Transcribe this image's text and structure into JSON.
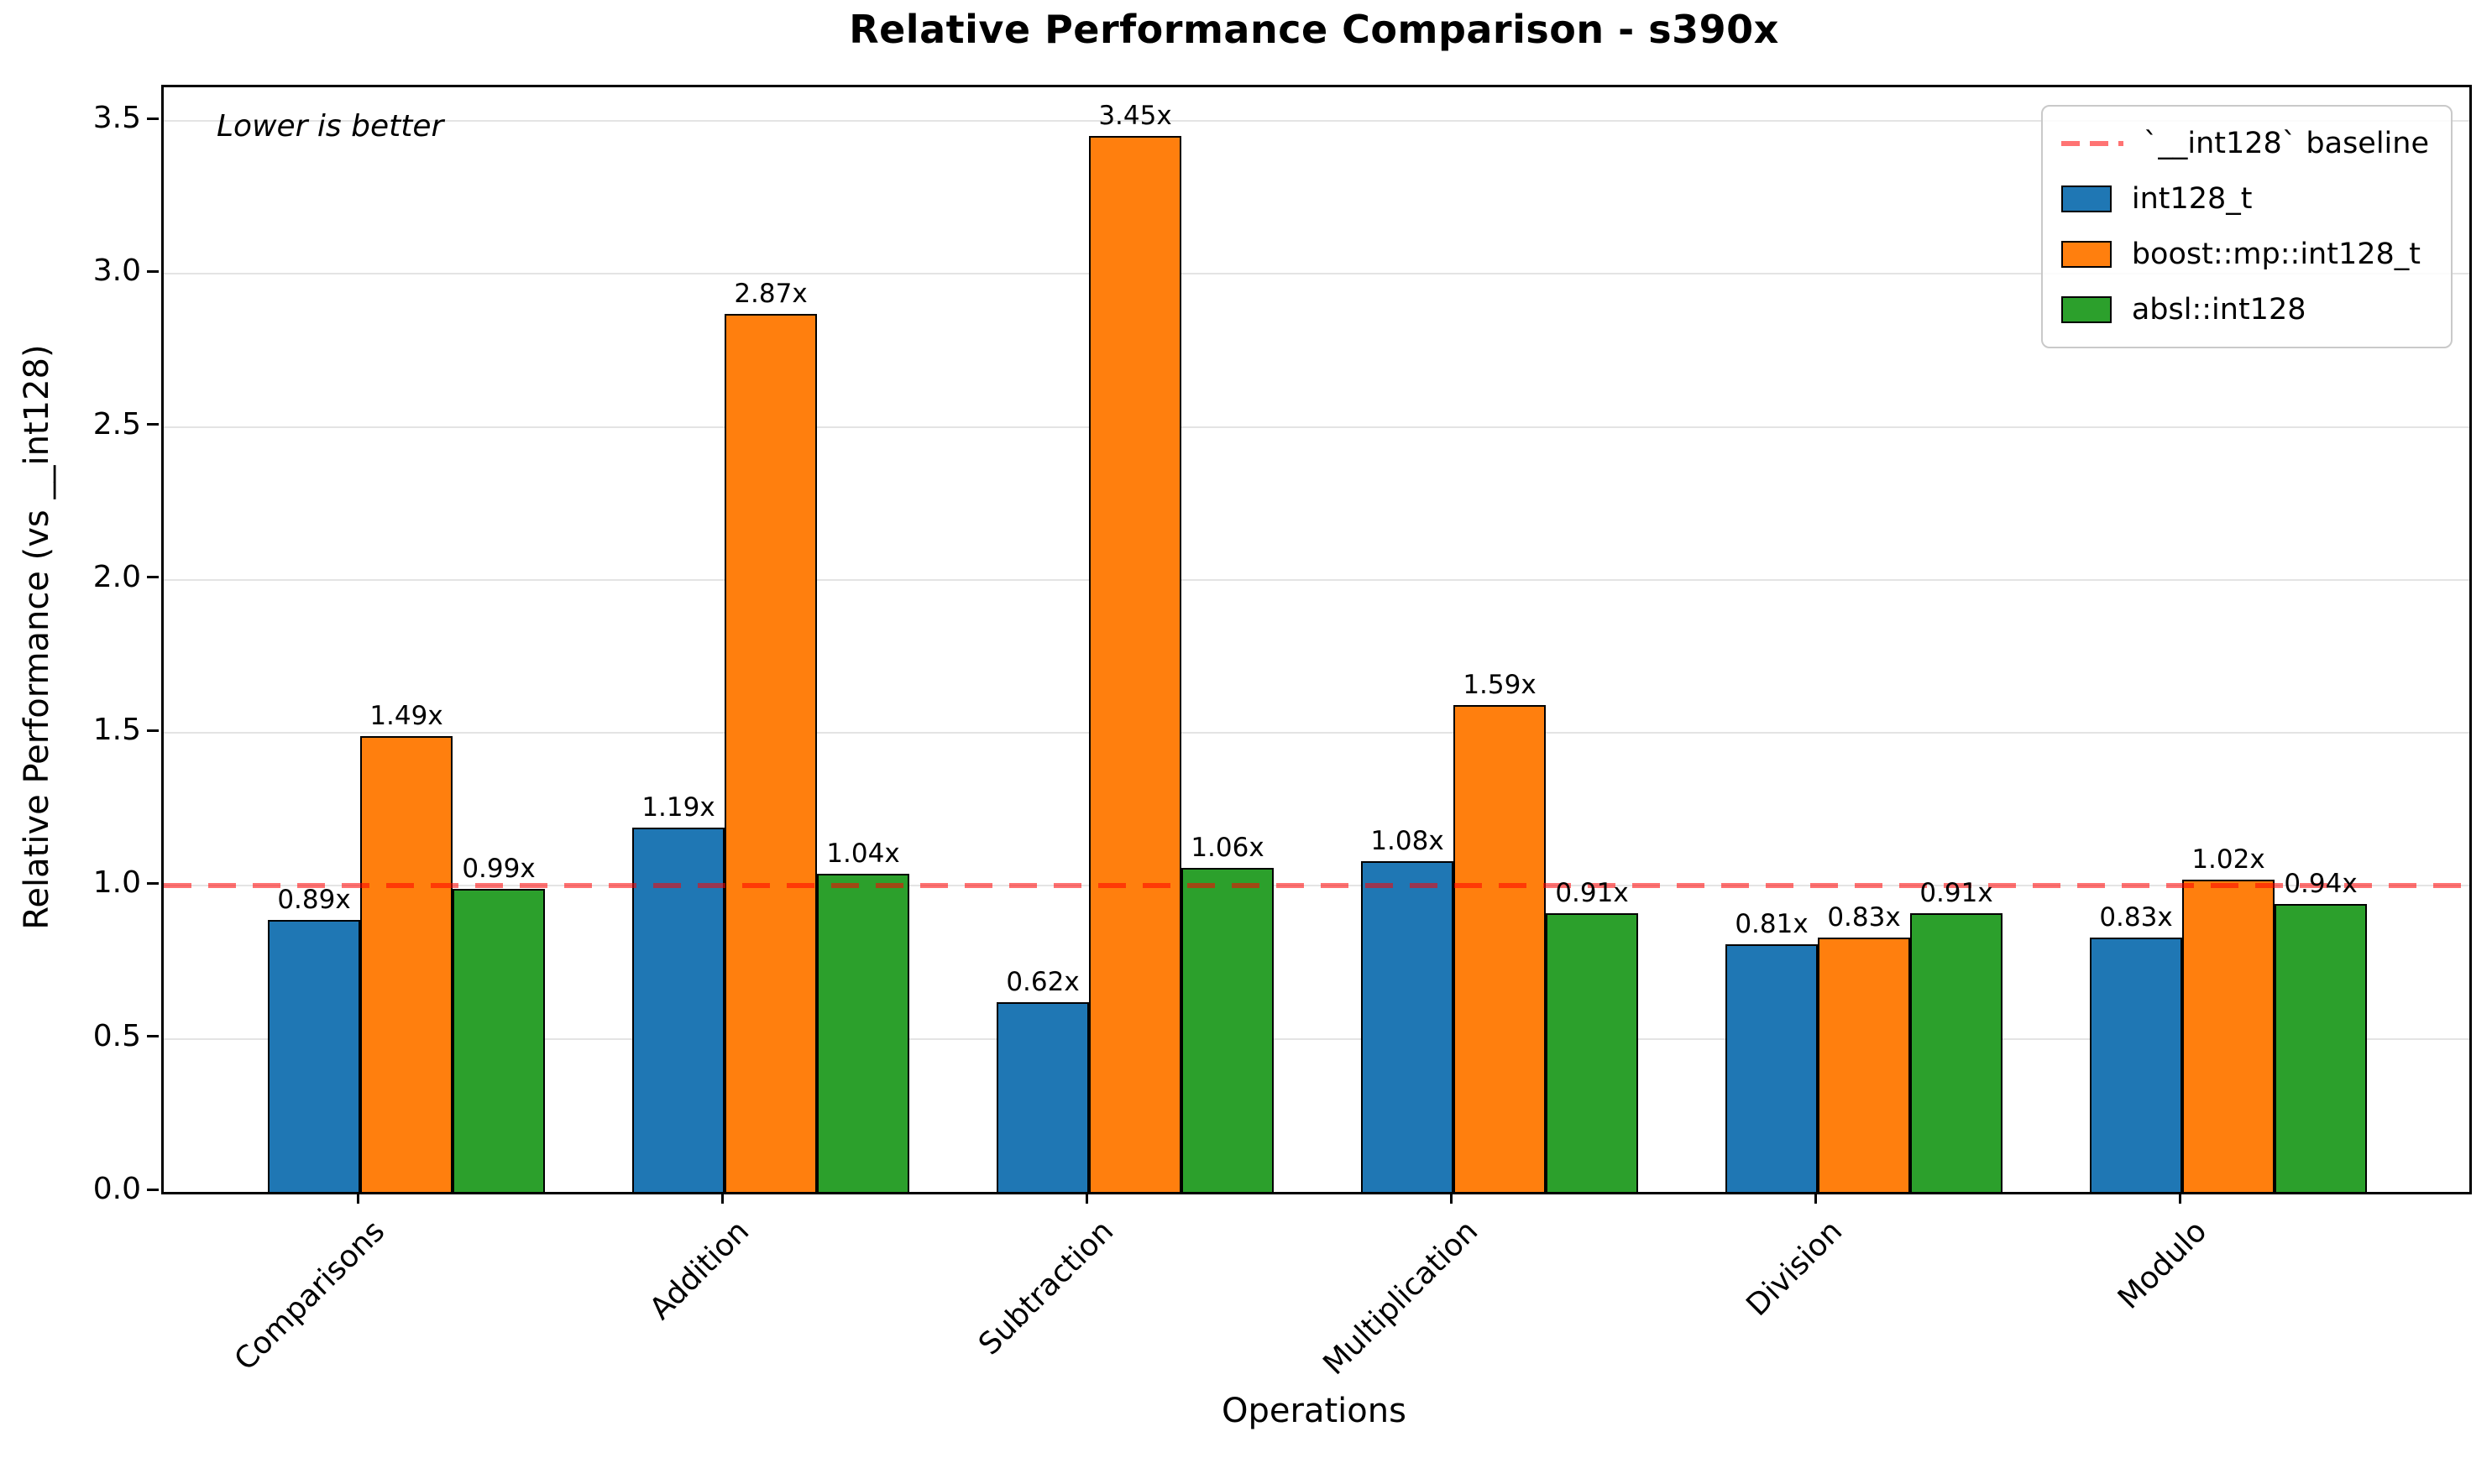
{
  "title": "Relative Performance Comparison - s390x",
  "annotation": "Lower is better",
  "chart_data": {
    "type": "bar",
    "title": "Relative Performance Comparison - s390x",
    "xlabel": "Operations",
    "ylabel": "Relative Performance (vs __int128)",
    "categories": [
      "Comparisons",
      "Addition",
      "Subtraction",
      "Multiplication",
      "Division",
      "Modulo"
    ],
    "series": [
      {
        "name": "int128_t",
        "color": "#1f77b4",
        "values": [
          0.89,
          1.19,
          0.62,
          1.08,
          0.81,
          0.83
        ]
      },
      {
        "name": "boost::mp::int128_t",
        "color": "#ff7f0e",
        "values": [
          1.49,
          2.87,
          3.45,
          1.59,
          0.83,
          1.02
        ]
      },
      {
        "name": "absl::int128",
        "color": "#2ca02c",
        "values": [
          0.99,
          1.04,
          1.06,
          0.91,
          0.91,
          0.94
        ]
      }
    ],
    "bar_labels": [
      [
        "0.89x",
        "1.19x",
        "0.62x",
        "1.08x",
        "0.81x",
        "0.83x"
      ],
      [
        "1.49x",
        "2.87x",
        "3.45x",
        "1.59x",
        "0.83x",
        "1.02x"
      ],
      [
        "0.99x",
        "1.04x",
        "1.06x",
        "0.91x",
        "0.91x",
        "0.94x"
      ]
    ],
    "bar_label_suffix": "x",
    "baseline": {
      "value": 1.0,
      "label": "`__int128` baseline",
      "color": "rgba(255,0,0,0.55)"
    },
    "annotation": "Lower is better",
    "ylim": [
      0.0,
      3.61
    ],
    "yticks": [
      "0.0",
      "0.5",
      "1.0",
      "1.5",
      "2.0",
      "2.5",
      "3.0",
      "3.5"
    ],
    "grid": true,
    "grid_color": "#e4e4e4",
    "legend_position": "upper right"
  }
}
